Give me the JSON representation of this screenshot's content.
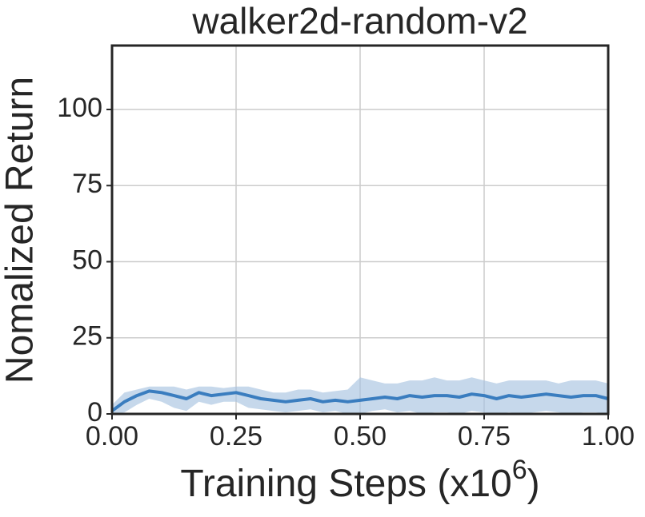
{
  "chart_data": {
    "type": "line",
    "title": "walker2d-random-v2",
    "xlabel": {
      "text": "Training Steps (x10",
      "superscript": "6",
      "suffix": ")"
    },
    "ylabel": "Nomalized Return",
    "x": [
      0,
      0.025,
      0.05,
      0.075,
      0.1,
      0.125,
      0.15,
      0.175,
      0.2,
      0.225,
      0.25,
      0.275,
      0.3,
      0.325,
      0.35,
      0.375,
      0.4,
      0.425,
      0.45,
      0.475,
      0.5,
      0.525,
      0.55,
      0.575,
      0.6,
      0.625,
      0.65,
      0.675,
      0.7,
      0.725,
      0.75,
      0.775,
      0.8,
      0.825,
      0.85,
      0.875,
      0.9,
      0.925,
      0.95,
      0.975,
      1
    ],
    "series": [
      {
        "color": "#3a7dbf",
        "band_color": "#a7c3e0",
        "values": [
          1,
          4,
          6,
          7.5,
          7,
          6,
          5,
          7,
          6,
          6.5,
          7,
          6,
          5,
          4.5,
          4,
          4.5,
          5,
          4,
          4.5,
          4,
          4.5,
          5,
          5.5,
          5,
          6,
          5.5,
          6,
          6,
          5.5,
          6.5,
          6,
          5,
          6,
          5.5,
          6,
          6.5,
          6,
          5.5,
          6,
          6,
          5
        ],
        "lower": [
          0,
          0.5,
          3,
          5,
          4,
          2,
          1,
          4,
          3,
          4,
          4,
          2,
          1.5,
          1,
          0.5,
          1,
          1.5,
          0.5,
          1,
          0,
          0,
          1,
          1.5,
          0.5,
          1,
          0,
          0.5,
          0.5,
          0,
          1,
          0.5,
          0,
          0.5,
          0,
          0.5,
          1,
          0.5,
          0,
          0.5,
          0.5,
          0
        ],
        "upper": [
          3,
          7,
          8,
          9,
          9,
          9,
          8,
          9,
          9,
          8.5,
          9,
          9,
          8,
          7,
          7,
          8,
          8,
          7,
          7.5,
          8,
          12,
          11,
          10,
          10,
          11,
          11,
          12,
          11,
          11,
          12,
          11,
          10,
          11,
          11,
          11,
          11,
          10,
          11,
          11,
          11,
          10
        ]
      }
    ],
    "xlim": [
      0,
      1
    ],
    "ylim": [
      0,
      121
    ],
    "xticks": [
      {
        "value": 0,
        "label": "0.00"
      },
      {
        "value": 0.25,
        "label": "0.25"
      },
      {
        "value": 0.5,
        "label": "0.50"
      },
      {
        "value": 0.75,
        "label": "0.75"
      },
      {
        "value": 1,
        "label": "1.00"
      }
    ],
    "yticks": [
      0,
      25,
      50,
      75,
      100
    ],
    "grid": true
  }
}
